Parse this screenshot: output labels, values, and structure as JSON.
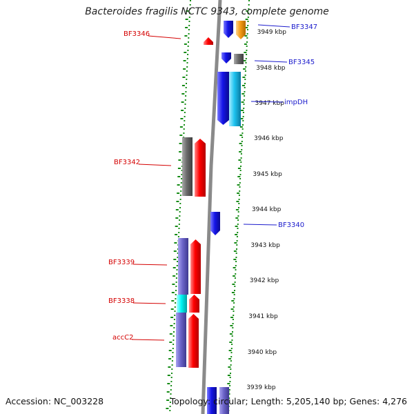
{
  "title": "Bacteroides fragilis NCTC 9343, complete genome",
  "accession": "Accession: NC_003228",
  "topology": "Topology: circular; Length: 5,205,140 bp; Genes: 4,276",
  "colors": {
    "backbone": "#8a8a8a",
    "dots": "#138a13",
    "red_label": "#d40000",
    "blue_label": "#1a1acc",
    "red": "#ff0000",
    "blue": "#1515e8",
    "orange": "#f59b16",
    "gray": "#6a6a6a",
    "cyan": "#1ec3f0",
    "slate": "#6b63c8",
    "bright_cyan": "#00f5f5"
  },
  "ruler": [
    {
      "label": "3949 kbp"
    },
    {
      "label": "3948 kbp"
    },
    {
      "label": "3947 kbp"
    },
    {
      "label": "3946 kbp"
    },
    {
      "label": "3945 kbp"
    },
    {
      "label": "3944 kbp"
    },
    {
      "label": "3943 kbp"
    },
    {
      "label": "3942 kbp"
    },
    {
      "label": "3941 kbp"
    },
    {
      "label": "3940 kbp"
    },
    {
      "label": "3939 kbp"
    }
  ],
  "genes_left": [
    {
      "label": "BF3346"
    },
    {
      "label": "BF3342"
    },
    {
      "label": "BF3339"
    },
    {
      "label": "BF3338"
    },
    {
      "label": "accC2"
    }
  ],
  "genes_right": [
    {
      "label": "BF3347"
    },
    {
      "label": "BF3345"
    },
    {
      "label": "impDH"
    },
    {
      "label": "BF3340"
    }
  ]
}
